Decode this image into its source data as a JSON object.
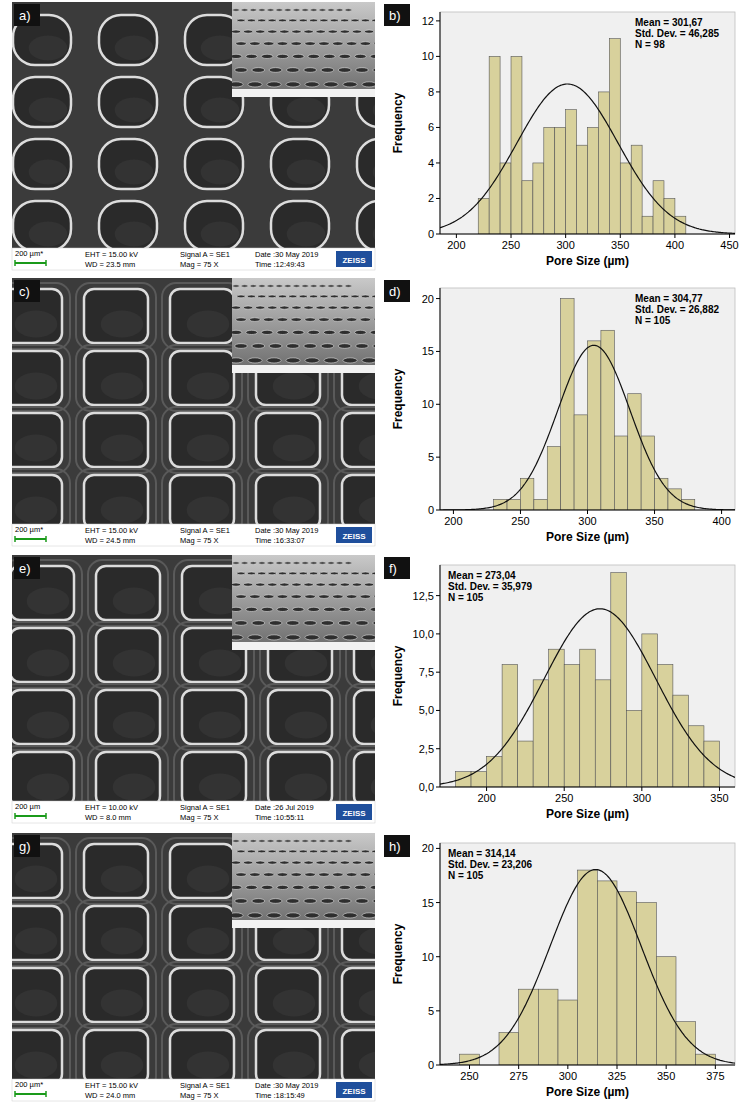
{
  "panels": [
    {
      "label": "a)",
      "scale_bar": "200 µm*",
      "eht": "EHT = 15.00 kV",
      "wd": "WD = 23.5 mm",
      "signal": "Signal A = SE1",
      "mag": "Mag =   75 X",
      "date": "Date :30 May 2019",
      "time": "Time :12:49:43",
      "logo": "ZEISS"
    },
    {
      "label": "c)",
      "scale_bar": "200 µm*",
      "eht": "EHT = 15.00 kV",
      "wd": "WD = 24.5 mm",
      "signal": "Signal A = SE1",
      "mag": "Mag =   75 X",
      "date": "Date :30 May 2019",
      "time": "Time :16:33:07",
      "logo": "ZEISS"
    },
    {
      "label": "e)",
      "scale_bar": "200 µm",
      "eht": "EHT = 10.00 kV",
      "wd": "WD = 8.0 mm",
      "signal": "Signal A = SE1",
      "mag": "Mag =   75 X",
      "date": "Date :26 Jul 2019",
      "time": "Time :10:55:11",
      "logo": "ZEISS"
    },
    {
      "label": "g)",
      "scale_bar": "200 µm*",
      "eht": "EHT = 15.00 kV",
      "wd": "WD = 24.0 mm",
      "signal": "Signal A = SE1",
      "mag": "Mag =   75 X",
      "date": "Date :30 May 2019",
      "time": "Time :18:15:49",
      "logo": "ZEISS"
    }
  ],
  "chart_data": [
    {
      "type": "histogram",
      "panel_label": "b)",
      "x_label": "Pore Size (µm)",
      "y_label": "Frequency",
      "annotations": [
        "Mean = 301,67",
        "Std. Dev. = 46,285",
        "N = 98"
      ],
      "normal_curve": {
        "mean": 301.67,
        "std_dev": 46.285,
        "n": 98
      },
      "bins": [
        220,
        230,
        240,
        250,
        260,
        270,
        280,
        290,
        300,
        310,
        320,
        330,
        340,
        350,
        360,
        370,
        380,
        390,
        400,
        410
      ],
      "values": [
        2,
        10,
        4,
        10,
        3,
        4,
        6,
        6,
        7,
        5,
        6,
        8,
        11,
        4,
        5,
        1,
        3,
        2,
        1
      ],
      "color": "#d8d19c",
      "xlim": [
        185,
        455
      ],
      "xticks": [
        200,
        250,
        300,
        350,
        400,
        450
      ],
      "ylim": [
        0,
        12.5
      ],
      "yticks": [
        0,
        2,
        4,
        6,
        8,
        10,
        12
      ]
    },
    {
      "type": "histogram",
      "panel_label": "d)",
      "x_label": "Pore Size (µm)",
      "y_label": "Frequency",
      "annotations": [
        "Mean = 304,77",
        "Std. Dev. = 26,882",
        "N = 105"
      ],
      "normal_curve": {
        "mean": 304.77,
        "std_dev": 26.882,
        "n": 105
      },
      "bins": [
        230,
        240,
        250,
        260,
        270,
        280,
        290,
        300,
        310,
        320,
        330,
        340,
        350,
        360,
        370,
        380
      ],
      "values": [
        1,
        1,
        3,
        1,
        6,
        20,
        9,
        16,
        17,
        7,
        11,
        7,
        3,
        2,
        1
      ],
      "color": "#d8d19c",
      "xlim": [
        190,
        410
      ],
      "xticks": [
        200,
        250,
        300,
        350,
        400
      ],
      "ylim": [
        0,
        21
      ],
      "yticks": [
        0,
        5,
        10,
        15,
        20
      ]
    },
    {
      "type": "histogram",
      "panel_label": "f)",
      "x_label": "Pore Size (µm)",
      "y_label": "Frequency",
      "annotations": [
        "Mean = 273,04",
        "Std. Dev. = 35,979",
        "N = 105"
      ],
      "normal_curve": {
        "mean": 273.04,
        "std_dev": 35.979,
        "n": 105
      },
      "bins": [
        180,
        190,
        200,
        210,
        220,
        230,
        240,
        250,
        260,
        270,
        280,
        290,
        300,
        310,
        320,
        330,
        340,
        350
      ],
      "values": [
        1,
        1,
        2,
        8,
        3,
        7,
        9,
        8,
        9,
        7,
        14,
        5,
        10,
        8,
        6,
        4,
        3
      ],
      "color": "#d8d19c",
      "xlim": [
        170,
        360
      ],
      "xticks": [
        200,
        250,
        300,
        350
      ],
      "ylim": [
        0,
        14.5
      ],
      "yticks": [
        {
          "value": 0,
          "label": "0,0"
        },
        {
          "value": 2.5,
          "label": "2,5"
        },
        {
          "value": 5,
          "label": "5,0"
        },
        {
          "value": 7.5,
          "label": "7,5"
        },
        {
          "value": 10,
          "label": "10,0"
        },
        {
          "value": 12.5,
          "label": "12,5"
        }
      ]
    },
    {
      "type": "histogram",
      "panel_label": "h)",
      "x_label": "Pore Size (µm)",
      "y_label": "Frequency",
      "annotations": [
        "Mean = 314,14",
        "Std. Dev. = 23,206",
        "N = 105"
      ],
      "normal_curve": {
        "mean": 314.14,
        "std_dev": 23.206,
        "n": 105
      },
      "bins": [
        245,
        255,
        265,
        275,
        285,
        295,
        305,
        315,
        325,
        335,
        345,
        355,
        365,
        375
      ],
      "values": [
        1,
        0,
        3,
        7,
        7,
        6,
        18,
        17,
        16,
        15,
        10,
        4,
        1
      ],
      "color": "#d8d19c",
      "xlim": [
        235,
        385
      ],
      "xticks": [
        250,
        275,
        300,
        325,
        350,
        375
      ],
      "ylim": [
        0,
        20.5
      ],
      "yticks": [
        0,
        5,
        10,
        15,
        20
      ]
    }
  ]
}
